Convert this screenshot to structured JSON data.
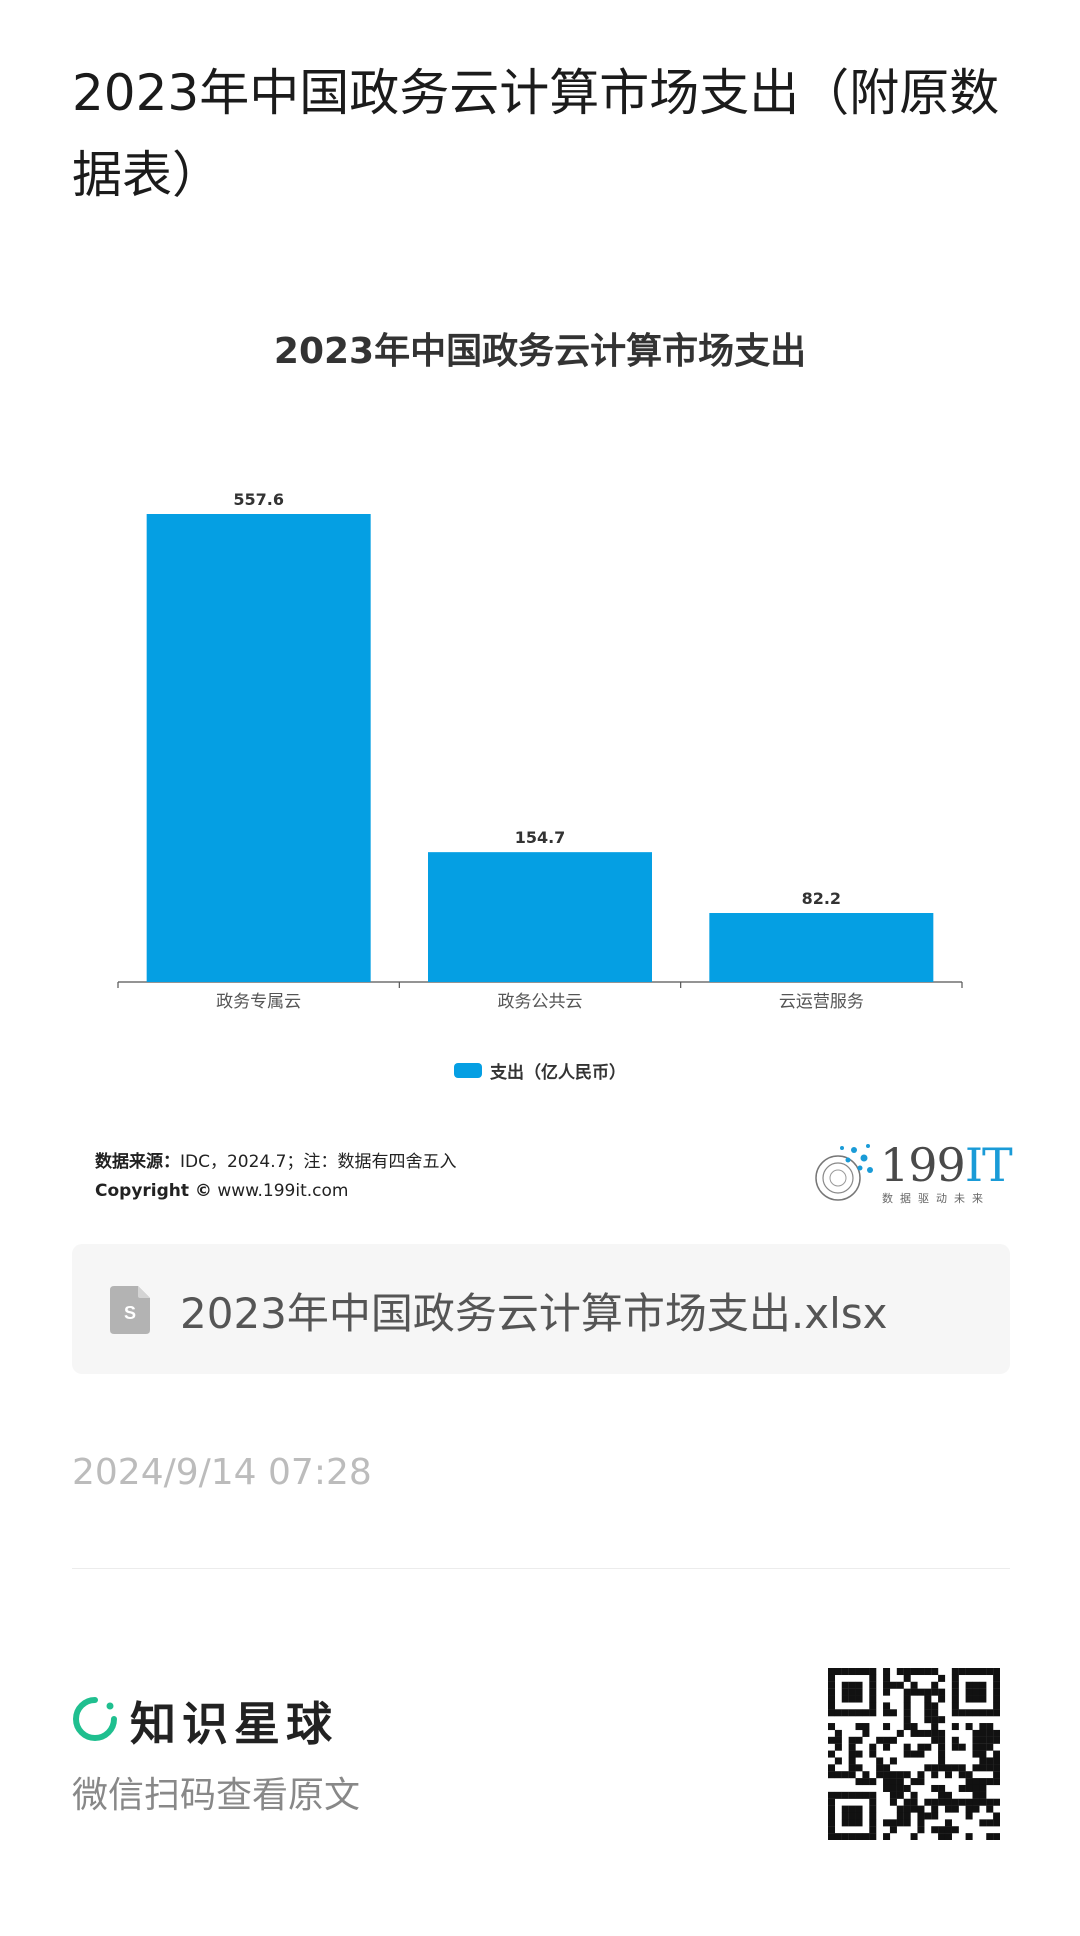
{
  "page": {
    "title": "2023年中国政务云计算市场支出（附原数据表）"
  },
  "chart_data": {
    "type": "bar",
    "title": "2023年中国政务云计算市场支出",
    "categories": [
      "政务专属云",
      "政务公共云",
      "云运营服务"
    ],
    "series": [
      {
        "name": "支出（亿人民币）",
        "values": [
          557.6,
          154.7,
          82.2
        ],
        "color": "#059fe3"
      }
    ],
    "value_labels": [
      "557.6",
      "154.7",
      "82.2"
    ],
    "ylim": [
      0,
      557.6
    ],
    "grid": false,
    "legend_position": "bottom-center"
  },
  "source": {
    "label": "数据来源：",
    "text": "IDC，2024.7；注：数据有四舍五入",
    "copyright_label": "Copyright ©",
    "copyright_url": "www.199it.com"
  },
  "brand": {
    "name_num": "199",
    "name_it": "IT",
    "slogan": "数据驱动未来"
  },
  "attachment": {
    "icon": "spreadsheet-file-icon",
    "filename": "2023年中国政务云计算市场支出.xlsx"
  },
  "meta": {
    "timestamp": "2024/9/14 07:28"
  },
  "footer": {
    "app_name": "知识星球",
    "hint": "微信扫码查看原文",
    "qr_icon": "qr-code-icon"
  }
}
